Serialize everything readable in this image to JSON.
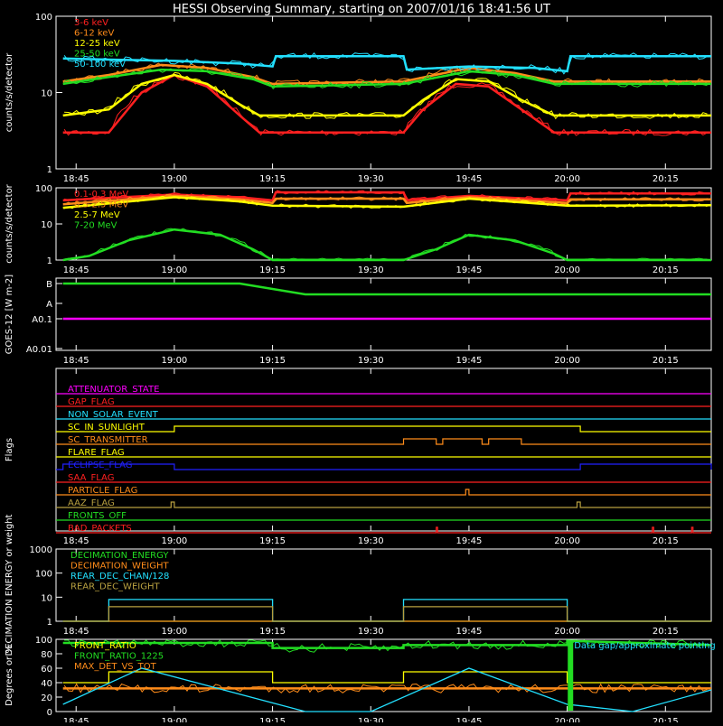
{
  "title": "HESSI Observing Summary, starting on 2007/01/16 18:41:56 UT",
  "time_ticks": [
    "18:45",
    "19:00",
    "19:15",
    "19:30",
    "19:45",
    "20:00",
    "20:15"
  ],
  "colors": {
    "red": "#ff2020",
    "orange": "#ff8c1a",
    "yellow": "#ffff00",
    "green": "#22dd22",
    "cyan": "#22e0ff",
    "magenta": "#ff00ff",
    "blue": "#2020ff",
    "olive": "#b8a040",
    "white": "#ffffff"
  },
  "chart_data": [
    {
      "id": "lowenergy",
      "type": "line",
      "ylabel": "counts/s/detector",
      "y_scale": "log",
      "ylim": [
        1,
        100
      ],
      "yticks": [
        "100",
        "10",
        "1"
      ],
      "x_unit": "UT",
      "xlim": [
        "18:41:56",
        "20:22"
      ],
      "series": [
        {
          "name": "3-6 keV",
          "color": "red",
          "points": [
            [
              "18:43",
              3
            ],
            [
              "18:50",
              3
            ],
            [
              "18:55",
              10
            ],
            [
              "19:00",
              17
            ],
            [
              "19:05",
              12
            ],
            [
              "19:10",
              5
            ],
            [
              "19:13",
              3
            ],
            [
              "19:35",
              3
            ],
            [
              "19:38",
              6
            ],
            [
              "19:43",
              13
            ],
            [
              "19:48",
              12
            ],
            [
              "19:53",
              6
            ],
            [
              "19:58",
              3
            ],
            [
              "20:22",
              3
            ]
          ]
        },
        {
          "name": "6-12 keV",
          "color": "orange",
          "points": [
            [
              "18:43",
              14
            ],
            [
              "18:50",
              17
            ],
            [
              "18:58",
              23
            ],
            [
              "19:05",
              21
            ],
            [
              "19:12",
              16
            ],
            [
              "19:15",
              13
            ],
            [
              "19:35",
              14
            ],
            [
              "19:45",
              21
            ],
            [
              "19:52",
              18
            ],
            [
              "19:58",
              14
            ],
            [
              "20:22",
              14
            ]
          ]
        },
        {
          "name": "12-25 keV",
          "color": "yellow",
          "points": [
            [
              "18:43",
              5
            ],
            [
              "18:50",
              6
            ],
            [
              "18:55",
              13
            ],
            [
              "19:00",
              17
            ],
            [
              "19:05",
              13
            ],
            [
              "19:10",
              7
            ],
            [
              "19:13",
              5
            ],
            [
              "19:35",
              5
            ],
            [
              "19:38",
              8
            ],
            [
              "19:43",
              15
            ],
            [
              "19:48",
              14
            ],
            [
              "19:53",
              8
            ],
            [
              "19:58",
              5
            ],
            [
              "20:22",
              5
            ]
          ]
        },
        {
          "name": "25-50 keV",
          "color": "green",
          "points": [
            [
              "18:43",
              13
            ],
            [
              "18:50",
              16
            ],
            [
              "18:58",
              20
            ],
            [
              "19:05",
              19
            ],
            [
              "19:12",
              15
            ],
            [
              "19:15",
              12
            ],
            [
              "19:35",
              13
            ],
            [
              "19:45",
              19
            ],
            [
              "19:52",
              17
            ],
            [
              "19:58",
              13
            ],
            [
              "20:22",
              13
            ]
          ]
        },
        {
          "name": "50-100 keV",
          "color": "cyan",
          "points": [
            [
              "18:43",
              28
            ],
            [
              "18:50",
              27
            ],
            [
              "19:00",
              26
            ],
            [
              "19:10",
              24
            ],
            [
              "19:15",
              22
            ],
            [
              "19:15:30",
              30
            ],
            [
              "19:35",
              30
            ],
            [
              "19:35:30",
              20
            ],
            [
              "19:45",
              22
            ],
            [
              "19:55",
              21
            ],
            [
              "20:00",
              19
            ],
            [
              "20:00:30",
              30
            ],
            [
              "20:22",
              30
            ]
          ]
        }
      ]
    },
    {
      "id": "highenergy",
      "type": "line",
      "ylabel": "counts/s/detector",
      "y_scale": "log",
      "ylim": [
        1,
        100
      ],
      "yticks": [
        "100",
        "10",
        "1"
      ],
      "series": [
        {
          "name": "0.1-0.3 MeV",
          "color": "red",
          "points": [
            [
              "18:43",
              45
            ],
            [
              "19:00",
              65
            ],
            [
              "19:10",
              55
            ],
            [
              "19:15",
              45
            ],
            [
              "19:15:30",
              75
            ],
            [
              "19:35",
              75
            ],
            [
              "19:35:30",
              45
            ],
            [
              "19:45",
              60
            ],
            [
              "20:00",
              45
            ],
            [
              "20:00:30",
              70
            ],
            [
              "20:22",
              70
            ]
          ]
        },
        {
          "name": "0.3-2.5 MeV",
          "color": "orange",
          "points": [
            [
              "18:43",
              35
            ],
            [
              "19:00",
              60
            ],
            [
              "19:10",
              48
            ],
            [
              "19:15",
              38
            ],
            [
              "19:15:30",
              50
            ],
            [
              "19:35",
              50
            ],
            [
              "19:35:30",
              38
            ],
            [
              "19:45",
              55
            ],
            [
              "20:00",
              38
            ],
            [
              "20:00:30",
              48
            ],
            [
              "20:22",
              48
            ]
          ]
        },
        {
          "name": "2.5-7 MeV",
          "color": "yellow",
          "points": [
            [
              "18:43",
              28
            ],
            [
              "19:00",
              55
            ],
            [
              "19:10",
              42
            ],
            [
              "19:15",
              32
            ],
            [
              "19:35",
              30
            ],
            [
              "19:45",
              50
            ],
            [
              "20:00",
              32
            ],
            [
              "20:22",
              33
            ]
          ]
        },
        {
          "name": "7-20 MeV",
          "color": "green",
          "points": [
            [
              "18:43",
              1
            ],
            [
              "18:47",
              1.3
            ],
            [
              "18:53",
              3.5
            ],
            [
              "19:00",
              7
            ],
            [
              "19:07",
              5
            ],
            [
              "19:12",
              2
            ],
            [
              "19:15",
              1
            ],
            [
              "19:35",
              1
            ],
            [
              "19:40",
              2
            ],
            [
              "19:45",
              5
            ],
            [
              "19:52",
              3.5
            ],
            [
              "19:58",
              1.5
            ],
            [
              "20:00",
              1
            ],
            [
              "20:22",
              1
            ]
          ]
        }
      ]
    },
    {
      "id": "goes",
      "type": "line",
      "ylabel": "GOES-12 [W m-2]",
      "yticks": [
        "B",
        "A",
        "A0.1",
        "A0.01"
      ],
      "series": [
        {
          "color": "green",
          "points": [
            [
              "18:43",
              "B"
            ],
            [
              "19:10",
              "B"
            ],
            [
              "19:20",
              "A-B"
            ],
            [
              "19:35",
              "A-B"
            ],
            [
              "19:45",
              "A-B"
            ],
            [
              "20:00",
              "A-B"
            ],
            [
              "20:22",
              "A-B"
            ]
          ]
        },
        {
          "color": "magenta",
          "points": [
            [
              "18:43",
              "A0.1"
            ],
            [
              "20:22",
              "A0.1"
            ]
          ]
        }
      ]
    },
    {
      "id": "flags",
      "type": "line",
      "ylabel": "Flags",
      "flags": [
        {
          "name": "ATTENUATOR_STATE",
          "color": "magenta",
          "on": []
        },
        {
          "name": "GAP_FLAG",
          "color": "red",
          "on": []
        },
        {
          "name": "NON_SOLAR_EVENT",
          "color": "cyan",
          "on": []
        },
        {
          "name": "SC_IN_SUNLIGHT",
          "color": "yellow",
          "on": [
            [
              "19:00",
              "20:02"
            ]
          ]
        },
        {
          "name": "SC_TRANSMITTER",
          "color": "orange",
          "on": [
            [
              "19:35",
              "19:40"
            ],
            [
              "19:41",
              "19:47"
            ],
            [
              "19:48",
              "19:53"
            ]
          ]
        },
        {
          "name": "FLARE_FLAG",
          "color": "yellow",
          "on": []
        },
        {
          "name": "ECLIPSE_FLAG",
          "color": "blue",
          "on": [
            [
              "18:43",
              "19:00"
            ],
            [
              "20:02",
              "20:22"
            ]
          ]
        },
        {
          "name": "SAA_FLAG",
          "color": "red",
          "on": []
        },
        {
          "name": "PARTICLE_FLAG",
          "color": "orange",
          "on": [
            [
              "19:44:30",
              "19:45"
            ]
          ]
        },
        {
          "name": "AAZ_FLAG",
          "color": "olive",
          "on": [
            [
              "18:59:30",
              "19:00"
            ],
            [
              "20:01:30",
              "20:02"
            ]
          ]
        },
        {
          "name": "FRONTS_OFF",
          "color": "green",
          "on": []
        },
        {
          "name": "BAD_PACKETS",
          "color": "red",
          "on": [
            [
              "19:40",
              "19:40"
            ],
            [
              "20:13",
              "20:13"
            ],
            [
              "20:19",
              "20:19"
            ]
          ]
        }
      ]
    },
    {
      "id": "decimation",
      "type": "line",
      "ylabel": "DECIMATION ENERGY or weight",
      "y_scale": "log",
      "ylim": [
        1,
        1000
      ],
      "yticks": [
        "1000",
        "100",
        "10",
        "1"
      ],
      "series": [
        {
          "name": "DECIMATION_ENERGY",
          "color": "green",
          "points": [
            [
              "18:43",
              1
            ],
            [
              "20:22",
              1
            ]
          ]
        },
        {
          "name": "DECIMATION_WEIGHT",
          "color": "orange",
          "points": [
            [
              "18:43",
              1
            ],
            [
              "20:22",
              1
            ]
          ]
        },
        {
          "name": "REAR_DEC_CHAN/128",
          "color": "cyan",
          "points": [
            [
              "18:43",
              1
            ],
            [
              "18:50",
              1
            ],
            [
              "18:50",
              8
            ],
            [
              "19:15",
              8
            ],
            [
              "19:15",
              1
            ],
            [
              "19:35",
              1
            ],
            [
              "19:35",
              8
            ],
            [
              "20:00",
              8
            ],
            [
              "20:00",
              1
            ],
            [
              "20:22",
              1
            ]
          ]
        },
        {
          "name": "REAR_DEC_WEIGHT",
          "color": "olive",
          "points": [
            [
              "18:43",
              1
            ],
            [
              "18:50",
              1
            ],
            [
              "18:50",
              4
            ],
            [
              "19:15",
              4
            ],
            [
              "19:15",
              1
            ],
            [
              "19:35",
              1
            ],
            [
              "19:35",
              4
            ],
            [
              "20:00",
              4
            ],
            [
              "20:00",
              1
            ],
            [
              "20:22",
              1
            ]
          ]
        }
      ]
    },
    {
      "id": "ratios",
      "type": "line",
      "ylabel": "Degrees or %",
      "ylim": [
        0,
        100
      ],
      "yticks": [
        "100",
        "80",
        "60",
        "40",
        "20",
        "0"
      ],
      "annotation": "Data gap/approximate pointing",
      "series": [
        {
          "name": "FRONT_RATIO",
          "color": "yellow",
          "points": [
            [
              "18:43",
              40
            ],
            [
              "18:50",
              40
            ],
            [
              "18:50",
              55
            ],
            [
              "19:15",
              55
            ],
            [
              "19:15",
              40
            ],
            [
              "19:35",
              40
            ],
            [
              "19:35",
              55
            ],
            [
              "20:00",
              55
            ],
            [
              "20:00",
              40
            ],
            [
              "20:22",
              40
            ]
          ]
        },
        {
          "name": "FRONT_RATIO_1225",
          "color": "green",
          "points": [
            [
              "18:43",
              95
            ],
            [
              "19:15",
              95
            ],
            [
              "19:15",
              88
            ],
            [
              "19:35",
              88
            ],
            [
              "19:35",
              92
            ],
            [
              "20:00",
              92
            ],
            [
              "20:00",
              98
            ],
            [
              "20:22",
              92
            ]
          ]
        },
        {
          "name": "MAX_DET_VS_TOT",
          "color": "orange",
          "points": [
            [
              "18:43",
              32
            ],
            [
              "20:22",
              32
            ]
          ]
        },
        {
          "name": "",
          "color": "cyan",
          "points": [
            [
              "18:43",
              10
            ],
            [
              "18:55",
              60
            ],
            [
              "19:20",
              0
            ],
            [
              "19:30",
              0
            ],
            [
              "19:45",
              60
            ],
            [
              "20:00",
              10
            ],
            [
              "20:10",
              0
            ],
            [
              "20:22",
              30
            ]
          ]
        }
      ]
    }
  ]
}
